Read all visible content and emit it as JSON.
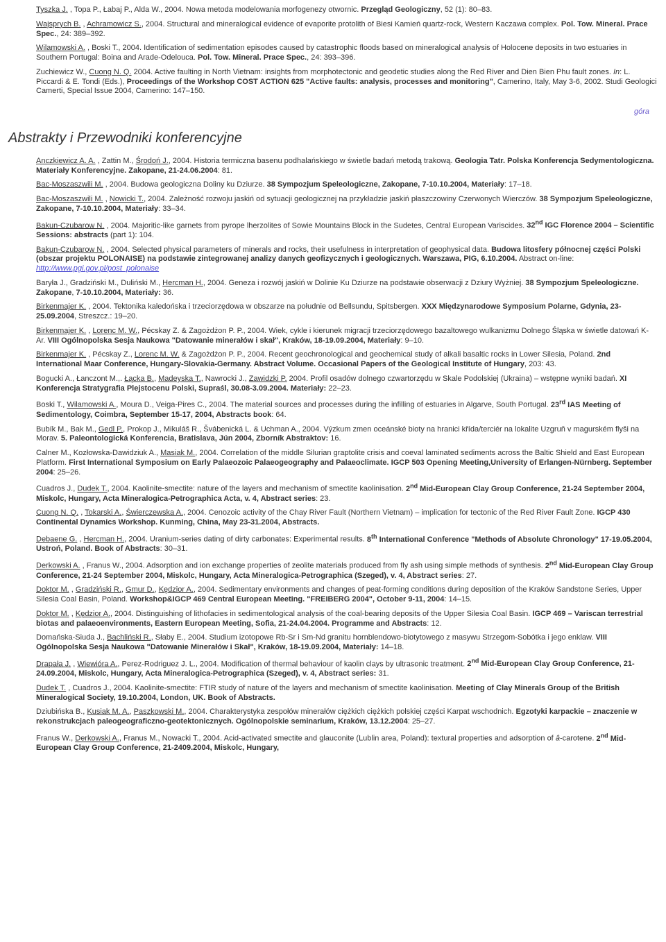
{
  "top_refs": [
    {
      "authors_u": "Tyszka J.",
      "authors_rest": " , Topa P., Łabaj P., Alda W., 2004. Nowa metoda modelowania morfogenezy otwornic. ",
      "bold": "Przegląd Geologiczny",
      "tail": ", 52 (1): 80–83."
    },
    {
      "authors_u": "Wajsprych B.",
      "authors_rest": " , ",
      "authors_u2": "Achramowicz S.",
      "rest2": ", 2004. Structural and mineralogical evidence of evaporite protolith of Biesi Kamień quartz-rock, Western Kaczawa complex. ",
      "bold": "Pol. Tow. Mineral. Prace Spec.",
      "tail": ", 24: 389–392."
    },
    {
      "authors_u": "Wilamowski A.",
      "authors_rest": " , Boski T., 2004. Identification of sedimentation episodes caused by catastrophic floods based on mineralogical analysis of Holocene deposits in two estuaries in Southern Portugal: Boina and Arade-Odelouca. ",
      "bold": "Pol. Tow. Mineral. Prace Spec.",
      "tail": ", 24: 393–396."
    },
    {
      "plain": "Zuchiewicz W., ",
      "authors_u": "Cuong N. Q.",
      "authors_rest": " 2004. Active faulting in North Vietnam: insights from morphotectonic and geodetic studies along the Red River and Dien Bien Phu fault zones. ",
      "ital": "In",
      "rest2": ": L. Piccardi & E. Tondi (Eds.), ",
      "bold": "Proceedings of the Workshop COST ACTION 625 \"Active faults: analysis, processes and monitoring\"",
      "tail": ", Camerino, Italy, May 3-6, 2002. Studi Geologici Camerti, Special Issue 2004, Camerino: 147–150."
    }
  ],
  "gora": "góra",
  "section_title": "Abstrakty i Przewodniki konferencyjne",
  "refs": [
    {
      "html": "<span class='u'>Anczkiewicz A. A.</span> , Zattin M., <span class='u'>Środoń J.</span>, 2004. Historia termiczna basenu podhalańskiego w świetle badań metodą trakową. <span class='b'>Geologia Tatr. Polska Konferencja Sedymentologiczna. Materiały Konferencyjne. Zakopane, 21-24.06.2004</span>: 81."
    },
    {
      "html": "<span class='u'>Bac-Moszaszwili M.</span> , 2004. Budowa geologiczna Doliny ku Dziurze. <span class='b'>38 Sympozjum Speleologiczne, Zakopane, 7-10.10.2004, Materiały</span>: 17–18."
    },
    {
      "html": "<span class='u'>Bac-Moszaszwili M.</span> , <span class='u'>Nowicki T.</span>, 2004. Zależność rozwoju jaskiń od sytuacji geologicznej na przykładzie jaskiń płaszczowiny Czerwonych Wierczów. <span class='b'>38 Sympozjum Speleologiczne, Zakopane, 7-10.10.2004, Materiały</span>: 33–34."
    },
    {
      "html": "<span class='u'>Bakun-Czubarow N.</span> , 2004. Majoritic-like garnets from pyrope lherzolites of Sowie Mountains Block in the Sudetes, Central European Variscides. <span class='b'>32<span class='sup'>nd</span> IGC Florence 2004 – Scientific Sessions: abstracts</span> (part 1): 104."
    },
    {
      "html": "<span class='u'>Bakun-Czubarow N.</span> , 2004. Selected physical parameters of minerals and rocks, their usefulness in interpretation of geophysical data. <span class='b'>Budowa litosfery północnej części Polski (obszar projektu POLONAISE) na podstawie zintegrowanej analizy danych geofizycznych i geologicznych. Warszawa, PIG, 6.10.2004.</span>  Abstract on-line: <a class='link' href='#'>http://www.pgi.gov.pl/post_polonaise</a>"
    },
    {
      "html": "Baryła J., Gradziński M., Duliński M., <span class='u'>Hercman H.</span>, 2004. Geneza i rozwój jaskiń w Dolinie Ku Dziurze na podstawie obserwacji z Dziury Wyżniej. <span class='b'>38 Sympozjum Speleologiczne. Zakopane</span>, <span class='b'>7-10.10.2004, Materiały:</span> 36."
    },
    {
      "html": "<span class='u'>Birkenmajer K.</span> , 2004. Tektonika kaledońska i trzeciorzędowa w obszarze na południe od Bellsundu, Spitsbergen. <span class='b'>XXX Międzynarodowe Symposium Polarne, Gdynia, 23-25.09.2004</span>, Streszcz.: 19–20."
    },
    {
      "html": "<span class='u'>Birkenmajer K.</span> , <span class='u'>Lorenc M. W.</span>, Pécskay Z. & Zagożdżon P. P., 2004. Wiek, cykle i kierunek migracji trzeciorzędowego bazaltowego wulkanizmu Dolnego Śląska w świetle datowań K-Ar. <span class='b'>VIII Ogólnopolska Sesja Naukowa \"Datowanie minerałów i skał\", Kraków, 18-19.09.2004, Materiały</span>: 9–10."
    },
    {
      "html": "<span class='u'>Birkenmajer K.</span> , Pécskay Z., <span class='u'>Lorenc M. W.</span> & Zagożdżon P. P., 2004. Recent geochronological and geochemical study of alkali basaltic rocks in Lower Silesia, Poland. <span class='b'>2nd International Maar Conference, Hungary-Slovakia-Germany. Abstract Volume. Occasional Papers of the Geological Institute of Hungary</span>, 203: 43."
    },
    {
      "html": "Bogucki A., Łanczont M.,. <span class='u'>Łącka B.</span>, <span class='u'>Madeyska T.</span>, Nawrocki J., <span class='u'>Zawidzki P.</span> 2004. Profil osadów dolnego czwartorzędu w Skale Podolskiej (Ukraina) – wstępne wyniki badań. <span class='b'>XI Konferencja Stratygrafia Plejstocenu Polski, Supraśl, 30.08-3.09.2004. Materiały:</span> 22–23."
    },
    {
      "html": "Boski T., <span class='u'>Wilamowski A.</span>, Moura D., Veiga-Pires C., 2004. The material sources and processes during the infilling of estuaries in Algarve, South Portugal. <span class='b'>23<span class='sup'>rd</span> IAS Meeting of Sedimentology, Coimbra, September 15-17, 2004, Abstracts book</span>: 64."
    },
    {
      "html": "Bubík M., Bak M., <span class='u'>Gedl P.</span>, Prokop J., Mikuláš R., Švábenická L. & Uchman A., 2004. Výzkum zmen oceánské bioty na hranici křída/terciér na lokalite Uzgruň v magurském flyši na Morav. <span class='b'>5. Paleontologická Konferencia, Bratislava, Jún 2004, Zborník Abstraktov:</span> 16."
    },
    {
      "html": "Calner M., Kozłowska-Dawidziuk A., <span class='u'>Masiak M.</span>, 2004. Correlation of the middle Silurian graptolite crisis and coeval laminated sediments across the Baltic Shield and East European Platform. <span class='b'>First International Symposium on Early Palaeozoic Palaeogeography and Palaeoclimate. IGCP 503 Opening Meeting,University of Erlangen-Nürnberg. September 2004</span>: 25–26."
    },
    {
      "html": "Cuadros J., <span class='u'>Dudek T.</span>, 2004. Kaolinite-smectite: nature of the layers and mechanism of smectite kaolinisation. <span class='b'>2<span class='sup'>nd</span> Mid-European Clay Group Conference, 21-24 September 2004, Miskolc, Hungary, Acta Mineralogica-Petrographica Acta, v. 4, Abstract series</span>: 23."
    },
    {
      "html": "<span class='u'>Cuong N. Q.</span> , <span class='u'>Tokarski A.</span>, <span class='u'>Świerczewska A.</span>, 2004. Cenozoic activity of the Chay River Fault (Northern Vietnam) – implication for tectonic of the Red River Fault Zone. <span class='b'>IGCP 430 Continental Dynamics Workshop. Kunming, China, May 23-31.2004, Abstracts.</span>"
    },
    {
      "html": "<span class='u'>Debaene G.</span> , <span class='u'>Hercman H.</span>, 2004. Uranium-series dating of dirty carbonates: Experimental results. <span class='b'>8<span class='sup'>th</span> International Conference \"Methods of Absolute Chronology\" 17-19.05.2004, Ustroń, Poland. Book of Abstracts</span>: 30–31."
    },
    {
      "html": "<span class='u'>Derkowski A.</span> , Franus W., 2004. Adsorption and ion exchange properties of zeolite materials produced from fly ash using simple methods of synthesis. <span class='b'>2<span class='sup'>nd</span> Mid-European Clay Group Conference, 21-24 September 2004, Miskolc, Hungary, Acta Mineralogica-Petrographica (Szeged), v. 4, Abstract series</span>: 27."
    },
    {
      "html": "<span class='u'>Doktor M.</span> , <span class='u'>Gradziński R.</span>, <span class='u'>Gmur D.</span>, <span class='u'>Kędzior A.</span>, 2004. Sedimentary environments and changes of peat-forming conditions during deposition of the Kraków Sandstone Series, Upper Silesia Coal Basin, Poland. <span class='b'>Workshop&IGCP 469 Central European Meeting. \"FREIBERG 2004\", October 9-11, 2004</span>: 14–15."
    },
    {
      "html": "<span class='u'>Doktor M.</span> , <span class='u'>Kędzior A.</span>, 2004. Distinguishing of lithofacies in sedimentological analysis of the coal-bearing deposits of the Upper Silesia Coal Basin. <span class='b'>IGCP 469 – Variscan terrestrial biotas and palaeoenvironments, Eastern European Meeting, Sofia, 21-24.04.2004. Programme and Abstracts</span>: 12."
    },
    {
      "html": "Domańska-Siuda J., <span class='u'>Bachliński R.</span>, Słaby E., 2004. Studium izotopowe Rb-Sr i Sm-Nd granitu hornblendowo-biotytowego z masywu Strzegom-Sobótka i jego enklaw. <span class='b'>VIII Ogólnopolska Sesja Naukowa \"Datowanie Minerałów i Skał\", Kraków, 18-19.09.2004, Materiały:</span> 14–18."
    },
    {
      "html": "<span class='u'>Drapała J.</span> , <span class='u'>Wiewióra A.</span>, Perez-Rodriguez J. L., 2004. Modification of thermal behaviour of kaolin clays by ultrasonic treatment. <span class='b'>2<span class='sup'>nd</span> Mid-European Clay Group Conference, 21-24.09.2004, Miskolc, Hungary, Acta Mineralogica-Petrographica (Szeged), v. 4, Abstract series:</span> 31."
    },
    {
      "html": "<span class='u'>Dudek T.</span> , Cuadros J., 2004. Kaolinite-smectite: FTIR study of nature of the layers and mechanism of smectite kaolinisation. <span class='b'>Meeting of Clay Minerals Group of the British Mineralogical Society, 19.10.2004, London, UK. Book of Abstracts.</span>"
    },
    {
      "html": "Dziubińska B., <span class='u'>Kusiak M. A.</span>, <span class='u'>Paszkowski M.</span>, 2004. Charakterystyka zespołów minerałów ciężkich ciężkich polskiej części Karpat wschodnich. <span class='b'>Egzotyki karpackie – znaczenie w rekonstrukcjach paleogeograficzno-geotektonicznych. Ogólnopolskie seminarium, Kraków, 13.12.2004</span>: 25–27."
    },
    {
      "html": "Franus W., <span class='u'>Derkowski A.</span>, Franus M., Nowacki T., 2004. Acid-activated smectite and glauconite (Lublin area, Poland): textural properties and adsorption of <span style='font-style:italic'>â</span>-carotene. <span class='b'>2<span class='sup'>nd</span> Mid-European Clay Group Conference, 21-2409.2004, Miskolc, Hungary,</span>"
    }
  ]
}
